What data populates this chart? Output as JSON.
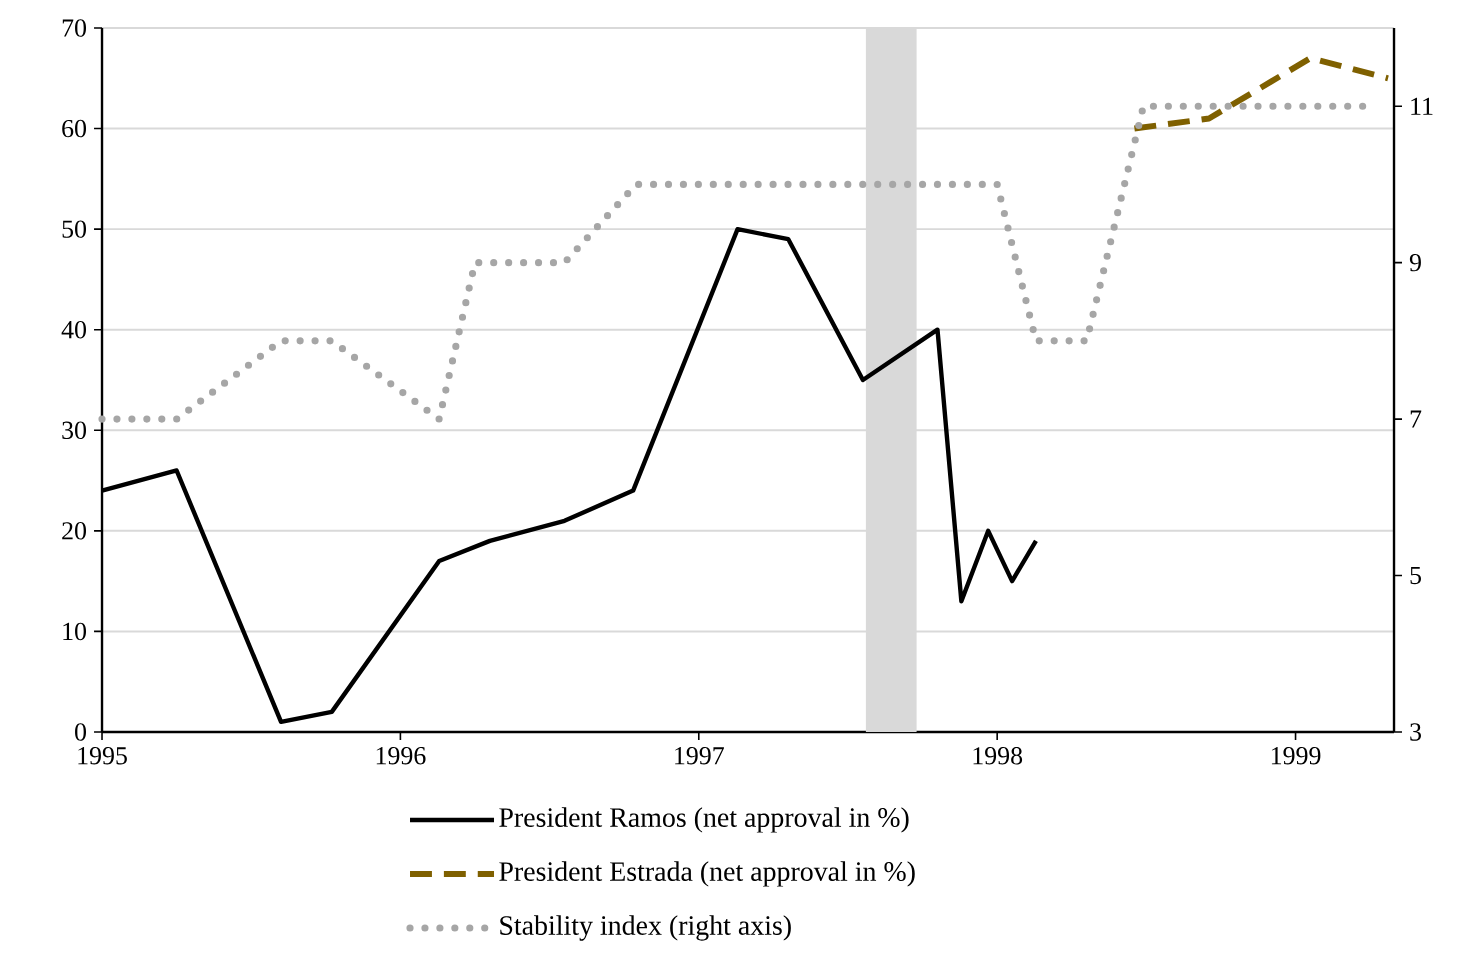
{
  "chart_data": {
    "type": "line",
    "xlim": [
      1995,
      1999.33
    ],
    "xticks": [
      1995,
      1996,
      1997,
      1998,
      1999
    ],
    "ylim": [
      0,
      70
    ],
    "yticks": [
      0,
      10,
      20,
      30,
      40,
      50,
      60,
      70
    ],
    "y2lim": [
      3,
      12
    ],
    "y2ticks": [
      3,
      5,
      7,
      9,
      11
    ],
    "grid": "y",
    "legend": "bottom",
    "marker": "none",
    "bands": [
      {
        "axis": "x",
        "from": 1997.56,
        "to": 1997.73,
        "color": "#d9d9d9"
      }
    ],
    "series": [
      {
        "name": "President Ramos (net approval in %)",
        "color": "#000000",
        "line_style": "solid",
        "x": [
          1995.0,
          1995.25,
          1995.6,
          1995.77,
          1996.13,
          1996.3,
          1996.55,
          1996.78,
          1997.13,
          1997.3,
          1997.55,
          1997.8,
          1997.88,
          1997.97,
          1998.05,
          1998.13
        ],
        "values": [
          24,
          26,
          1,
          2,
          17,
          19,
          21,
          24,
          50,
          49,
          35,
          40,
          13,
          20,
          15,
          19
        ]
      },
      {
        "name": "President Estrada (net approval in %)",
        "color": "#7f6000",
        "line_style": "dashed",
        "x": [
          1998.46,
          1998.71,
          1999.05,
          1999.31
        ],
        "values": [
          60,
          61,
          67,
          65
        ]
      },
      {
        "name": "Stability index (right axis)",
        "color": "#a6a6a6",
        "line_style": "dotted",
        "axis": "y2",
        "x": [
          1995.0,
          1995.25,
          1995.6,
          1995.77,
          1996.13,
          1996.25,
          1996.55,
          1996.79,
          1998.0,
          1998.13,
          1998.3,
          1998.49,
          1999.25
        ],
        "values": [
          7,
          7,
          8,
          8,
          7,
          9,
          9,
          10,
          10,
          8,
          8,
          11,
          11
        ]
      }
    ]
  }
}
